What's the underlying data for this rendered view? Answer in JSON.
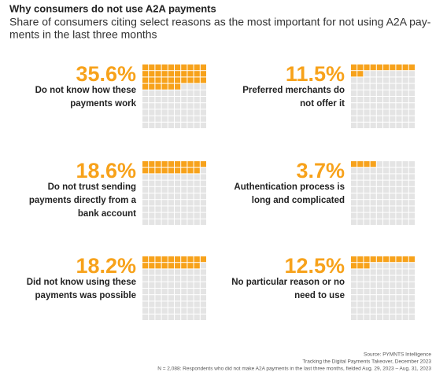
{
  "chart_data": {
    "type": "waffle",
    "title": "Why consumers do not use A2A payments",
    "subtitle": [
      "Share of consumers citing select reasons as the most important for not using A2A pay-",
      "ments in the last three months"
    ],
    "categories": [
      [
        "Do not know how these",
        "payments work"
      ],
      [
        "Preferred merchants do",
        "not offer it"
      ],
      [
        "Do not trust sending",
        "payments directly from a",
        "bank account"
      ],
      [
        "Authentication process is",
        "long and complicated"
      ],
      [
        "Did not know using these",
        "payments was possible"
      ],
      [
        "No particular reason or no",
        "need to use"
      ]
    ],
    "values": [
      35.6,
      11.5,
      18.6,
      3.7,
      18.2,
      12.5
    ],
    "value_labels": [
      "35.6%",
      "11.5%",
      "18.6%",
      "3.7%",
      "18.2%",
      "12.5%"
    ],
    "color": "#f7a21b"
  },
  "footer": [
    "Source: PYMNTS Intelligence",
    "Tracking the Digital Payments Takeover, December 2023",
    "N = 2,088: Respondents who did not make A2A payments in the last three months, fielded Aug. 29, 2023 – Aug. 31, 2023"
  ]
}
